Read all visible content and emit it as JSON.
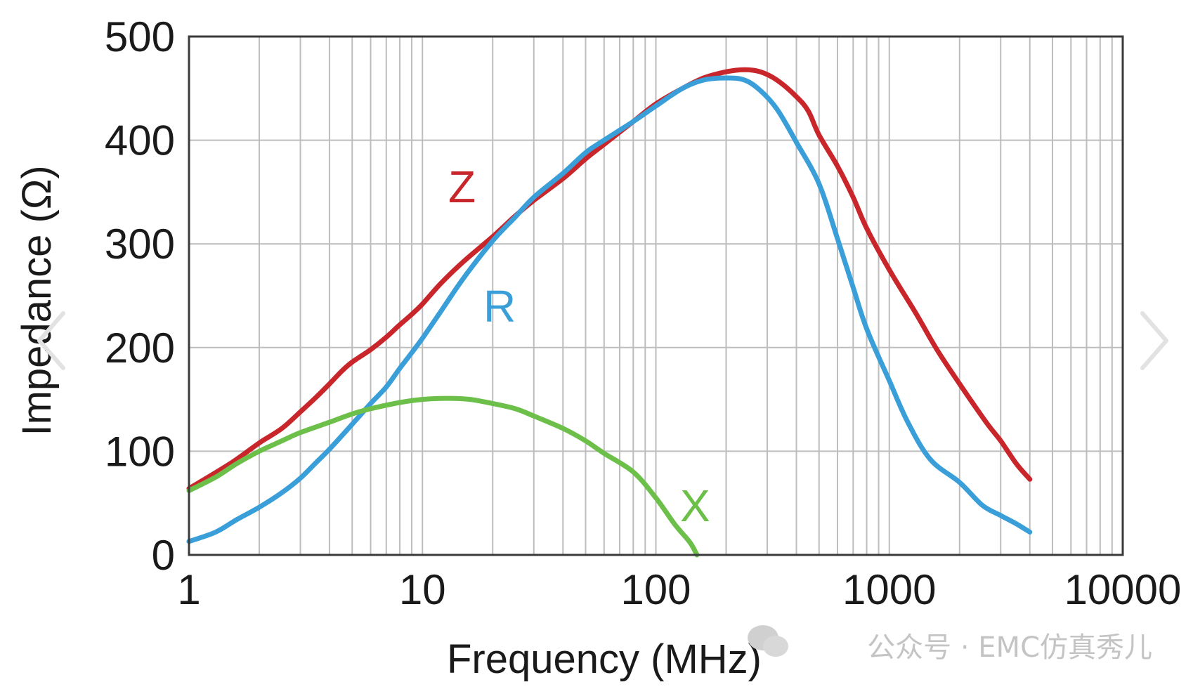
{
  "chart_data": {
    "type": "line",
    "title": "",
    "xlabel": "Frequency (MHz)",
    "ylabel": "Impedance (Ω)",
    "x_scale": "log",
    "xlim": [
      1,
      10000
    ],
    "ylim": [
      0,
      500
    ],
    "grid": true,
    "x_ticks": [
      "1",
      "10",
      "100",
      "1000",
      "10000"
    ],
    "y_ticks": [
      "0",
      "100",
      "200",
      "300",
      "400",
      "500"
    ],
    "series": [
      {
        "name": "Z",
        "color": "#c8262b",
        "points": [
          [
            1,
            64
          ],
          [
            1.5,
            88
          ],
          [
            2,
            108
          ],
          [
            2.5,
            122
          ],
          [
            3,
            138
          ],
          [
            3.5,
            152
          ],
          [
            4,
            165
          ],
          [
            4.5,
            177
          ],
          [
            5,
            186
          ],
          [
            6,
            198
          ],
          [
            7,
            210
          ],
          [
            8,
            222
          ],
          [
            9,
            232
          ],
          [
            10,
            242
          ],
          [
            12,
            262
          ],
          [
            15,
            283
          ],
          [
            20,
            307
          ],
          [
            25,
            327
          ],
          [
            30,
            342
          ],
          [
            40,
            363
          ],
          [
            50,
            382
          ],
          [
            60,
            396
          ],
          [
            80,
            418
          ],
          [
            100,
            435
          ],
          [
            130,
            450
          ],
          [
            160,
            460
          ],
          [
            200,
            466
          ],
          [
            240,
            468
          ],
          [
            280,
            466
          ],
          [
            330,
            458
          ],
          [
            400,
            442
          ],
          [
            450,
            428
          ],
          [
            500,
            405
          ],
          [
            600,
            375
          ],
          [
            700,
            345
          ],
          [
            800,
            315
          ],
          [
            1000,
            275
          ],
          [
            1300,
            233
          ],
          [
            1600,
            198
          ],
          [
            2000,
            165
          ],
          [
            2600,
            128
          ],
          [
            3000,
            110
          ],
          [
            3500,
            88
          ],
          [
            4000,
            73
          ]
        ]
      },
      {
        "name": "R",
        "color": "#3a9fd8",
        "points": [
          [
            1,
            13
          ],
          [
            1.3,
            22
          ],
          [
            1.6,
            34
          ],
          [
            2,
            46
          ],
          [
            2.5,
            60
          ],
          [
            3,
            74
          ],
          [
            3.5,
            89
          ],
          [
            4,
            102
          ],
          [
            5,
            126
          ],
          [
            6,
            146
          ],
          [
            7,
            162
          ],
          [
            8,
            180
          ],
          [
            9,
            195
          ],
          [
            10,
            209
          ],
          [
            12,
            235
          ],
          [
            15,
            267
          ],
          [
            20,
            303
          ],
          [
            25,
            326
          ],
          [
            30,
            345
          ],
          [
            40,
            368
          ],
          [
            50,
            388
          ],
          [
            60,
            400
          ],
          [
            80,
            418
          ],
          [
            100,
            433
          ],
          [
            130,
            450
          ],
          [
            160,
            458
          ],
          [
            200,
            460
          ],
          [
            240,
            458
          ],
          [
            280,
            448
          ],
          [
            330,
            430
          ],
          [
            400,
            398
          ],
          [
            500,
            358
          ],
          [
            600,
            305
          ],
          [
            700,
            258
          ],
          [
            800,
            218
          ],
          [
            1000,
            168
          ],
          [
            1200,
            128
          ],
          [
            1500,
            92
          ],
          [
            2000,
            70
          ],
          [
            2500,
            48
          ],
          [
            3000,
            38
          ],
          [
            3500,
            30
          ],
          [
            4000,
            22
          ]
        ]
      },
      {
        "name": "X",
        "color": "#6cc04a",
        "points": [
          [
            1,
            62
          ],
          [
            1.3,
            75
          ],
          [
            1.6,
            88
          ],
          [
            2,
            100
          ],
          [
            2.5,
            110
          ],
          [
            3,
            118
          ],
          [
            4,
            128
          ],
          [
            5,
            136
          ],
          [
            6,
            141
          ],
          [
            8,
            147
          ],
          [
            10,
            150
          ],
          [
            13,
            151
          ],
          [
            16,
            150
          ],
          [
            20,
            146
          ],
          [
            25,
            141
          ],
          [
            30,
            134
          ],
          [
            40,
            122
          ],
          [
            50,
            110
          ],
          [
            60,
            98
          ],
          [
            80,
            80
          ],
          [
            100,
            55
          ],
          [
            120,
            30
          ],
          [
            140,
            12
          ],
          [
            150,
            0
          ]
        ]
      }
    ]
  },
  "watermark": "公众号 · EMC仿真秀儿",
  "nav": {
    "prev_icon": "chevron-left-icon",
    "next_icon": "chevron-right-icon"
  }
}
